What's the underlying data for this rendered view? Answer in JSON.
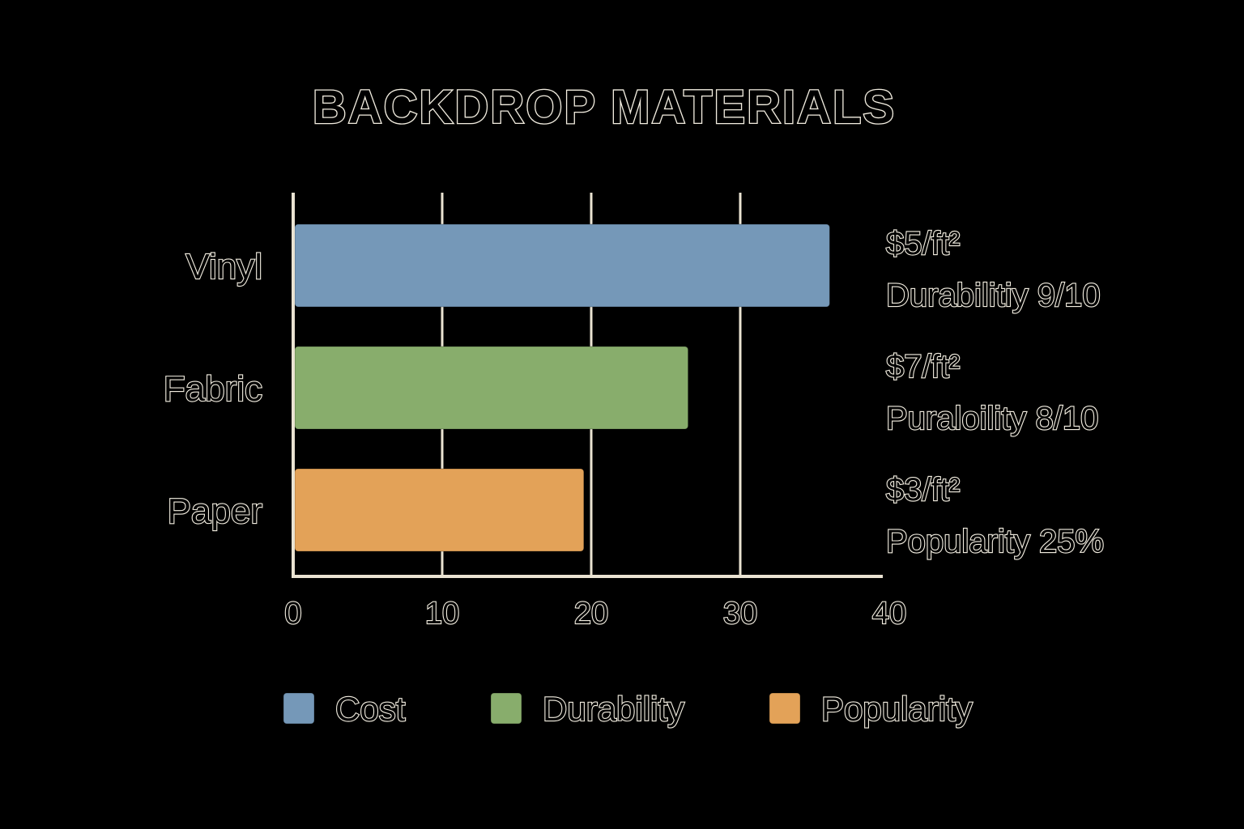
{
  "chart_data": {
    "type": "bar",
    "orientation": "horizontal",
    "title": "BACKDROP MATERIALS",
    "categories": [
      "Vinyl",
      "Fabric",
      "Paper"
    ],
    "values": [
      36,
      26.5,
      19.5
    ],
    "bar_colors": [
      "#7598b8",
      "#88ad6c",
      "#e3a258"
    ],
    "xlim": [
      0,
      40
    ],
    "x_ticks": [
      "0",
      "10",
      "20",
      "30",
      "40"
    ],
    "grid": true,
    "annotations": [
      {
        "line1": "$5/ft²",
        "line2": "Durabilitiy 9/10"
      },
      {
        "line1": "$7/ft²",
        "line2": "Puraloility 8/10"
      },
      {
        "line1": "$3/ft²",
        "line2": "Popularity 25%"
      }
    ],
    "legend": {
      "placement": "bottom",
      "items": [
        {
          "label": "Cost",
          "color": "#7598b8"
        },
        {
          "label": "Durability",
          "color": "#88ad6c"
        },
        {
          "label": "Popularity",
          "color": "#e3a258"
        }
      ]
    }
  },
  "colors": {
    "background": "#000000",
    "text_outline": "#f2ede0",
    "axis": "#eae3d2"
  }
}
